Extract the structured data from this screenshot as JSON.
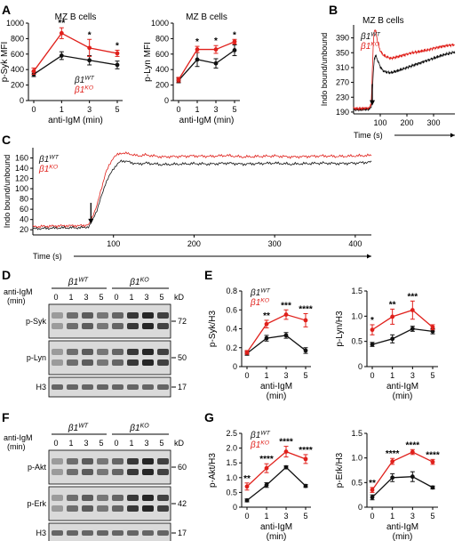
{
  "figure": {
    "panel_letters": [
      "A",
      "B",
      "C",
      "D",
      "E",
      "F",
      "G"
    ],
    "genotype_wt": "β1",
    "genotype_wt_sup": "WT",
    "genotype_ko": "β1",
    "genotype_ko_sup": "KO",
    "colors": {
      "wt": "#111111",
      "ko": "#e0201b"
    }
  },
  "blots": {
    "D": {
      "anti_label": "anti-IgM",
      "time_label": "(min)",
      "times": [
        "0",
        "1",
        "3",
        "5",
        "0",
        "1",
        "3",
        "5"
      ],
      "kd_label": "kD",
      "rows": [
        {
          "label": "p-Syk",
          "kd": "72"
        },
        {
          "label": "p-Lyn",
          "kd": "50"
        },
        {
          "label": "H3",
          "kd": "17"
        }
      ]
    },
    "F": {
      "anti_label": "anti-IgM",
      "time_label": "(min)",
      "times": [
        "0",
        "1",
        "3",
        "5",
        "0",
        "1",
        "3",
        "5"
      ],
      "kd_label": "kD",
      "rows": [
        {
          "label": "p-Akt",
          "kd": "60"
        },
        {
          "label": "p-Erk",
          "kd": "42"
        },
        {
          "label": "H3",
          "kd": "17"
        }
      ]
    }
  },
  "chart_data": [
    {
      "id": "A1",
      "panel": "A",
      "type": "line",
      "title": "MZ B cells",
      "xlabel": "anti-IgM (min)",
      "ylabel": "p-Syk MFI",
      "categories": [
        "0",
        "1",
        "3",
        "5"
      ],
      "ylim": [
        0,
        1000
      ],
      "yticks": [
        0,
        200,
        400,
        600,
        800,
        1000
      ],
      "series": [
        {
          "name": "β1WT",
          "values": [
            340,
            580,
            520,
            460
          ],
          "errors": [
            30,
            50,
            60,
            50
          ]
        },
        {
          "name": "β1KO",
          "values": [
            380,
            870,
            680,
            610
          ],
          "errors": [
            40,
            70,
            110,
            40
          ]
        }
      ],
      "stars": [
        "",
        "**",
        "*",
        "*"
      ]
    },
    {
      "id": "A2",
      "panel": "A",
      "type": "line",
      "title": "MZ B cells",
      "xlabel": "anti-IgM (min)",
      "ylabel": "p-Lyn MFI",
      "categories": [
        "0",
        "1",
        "3",
        "5"
      ],
      "ylim": [
        0,
        1000
      ],
      "yticks": [
        0,
        200,
        400,
        600,
        800,
        1000
      ],
      "series": [
        {
          "name": "β1WT",
          "values": [
            260,
            530,
            480,
            650
          ],
          "errors": [
            30,
            90,
            60,
            70
          ]
        },
        {
          "name": "β1KO",
          "values": [
            270,
            660,
            660,
            760
          ],
          "errors": [
            30,
            40,
            50,
            30
          ]
        }
      ],
      "stars": [
        "",
        "*",
        "*",
        "*"
      ]
    },
    {
      "id": "B",
      "panel": "B",
      "type": "line",
      "title": "MZ B cells",
      "xlabel": "Time (s)",
      "ylabel": "Indo bound/unbound",
      "xlim": [
        0,
        380
      ],
      "xticks": [
        100,
        200,
        300
      ],
      "ylim": [
        185,
        425
      ],
      "yticks": [
        190,
        230,
        270,
        310,
        350,
        390
      ],
      "arrow_x": 70,
      "series": [
        {
          "name": "β1WT",
          "x": [
            0,
            20,
            40,
            60,
            66,
            70,
            74,
            78,
            84,
            90,
            100,
            110,
            120,
            140,
            160,
            180,
            200,
            220,
            240,
            260,
            280,
            300,
            320,
            340,
            360,
            380
          ],
          "values": [
            197,
            196,
            197,
            198,
            205,
            240,
            300,
            335,
            342,
            330,
            312,
            302,
            298,
            296,
            300,
            305,
            310,
            315,
            320,
            325,
            330,
            335,
            340,
            345,
            348,
            352
          ]
        },
        {
          "name": "β1KO",
          "x": [
            0,
            20,
            40,
            60,
            66,
            70,
            74,
            78,
            84,
            90,
            100,
            110,
            120,
            140,
            160,
            180,
            200,
            220,
            240,
            260,
            280,
            300,
            320,
            340,
            360,
            380
          ],
          "values": [
            200,
            199,
            200,
            201,
            215,
            290,
            380,
            412,
            405,
            380,
            355,
            345,
            340,
            335,
            338,
            342,
            346,
            350,
            352,
            355,
            358,
            362,
            365,
            368,
            370,
            372
          ]
        }
      ]
    },
    {
      "id": "C",
      "panel": "C",
      "type": "line",
      "xlabel": "Time (s)",
      "ylabel": "Indo bound/unbound",
      "xlim": [
        0,
        420
      ],
      "xticks": [
        100,
        200,
        300,
        400
      ],
      "ylim": [
        10,
        180
      ],
      "yticks": [
        20,
        40,
        60,
        80,
        100,
        120,
        140,
        160
      ],
      "arrow_x": 72,
      "series": [
        {
          "name": "β1WT",
          "x": [
            0,
            20,
            40,
            60,
            70,
            80,
            90,
            100,
            110,
            120,
            130,
            140,
            160,
            180,
            200,
            220,
            240,
            260,
            280,
            300,
            320,
            340,
            360,
            380,
            400,
            420
          ],
          "values": [
            22,
            23,
            24,
            24,
            26,
            60,
            110,
            140,
            155,
            152,
            148,
            150,
            147,
            148,
            149,
            148,
            150,
            148,
            149,
            150,
            148,
            149,
            150,
            149,
            150,
            152
          ]
        },
        {
          "name": "β1KO",
          "x": [
            0,
            20,
            40,
            60,
            70,
            80,
            90,
            100,
            110,
            120,
            130,
            140,
            160,
            180,
            200,
            220,
            240,
            260,
            280,
            300,
            320,
            340,
            360,
            380,
            400,
            420
          ],
          "values": [
            26,
            27,
            28,
            28,
            30,
            70,
            130,
            162,
            170,
            168,
            164,
            166,
            162,
            163,
            164,
            163,
            165,
            162,
            163,
            164,
            162,
            163,
            164,
            163,
            164,
            165
          ]
        }
      ]
    },
    {
      "id": "E1",
      "panel": "E",
      "type": "line",
      "xlabel": "anti-IgM",
      "xlabel2": "(min)",
      "ylabel": "p-Syk/H3",
      "categories": [
        "0",
        "1",
        "3",
        "5"
      ],
      "ylim": [
        0,
        0.8
      ],
      "yticks": [
        0,
        0.2,
        0.4,
        0.6,
        0.8
      ],
      "ytick_labels": [
        "0",
        "0.2",
        "0.4",
        "0.6",
        "0.8"
      ],
      "series": [
        {
          "name": "β1WT",
          "values": [
            0.14,
            0.3,
            0.33,
            0.17
          ],
          "errors": [
            0.02,
            0.03,
            0.03,
            0.03
          ]
        },
        {
          "name": "β1KO",
          "values": [
            0.15,
            0.45,
            0.55,
            0.49
          ],
          "errors": [
            0.02,
            0.04,
            0.05,
            0.07
          ]
        }
      ],
      "stars": [
        "",
        "**",
        "***",
        "****"
      ]
    },
    {
      "id": "E2",
      "panel": "E",
      "type": "line",
      "xlabel": "anti-IgM",
      "xlabel2": "(min)",
      "ylabel": "p-Lyn/H3",
      "categories": [
        "0",
        "1",
        "3",
        "5"
      ],
      "ylim": [
        0,
        1.5
      ],
      "yticks": [
        0,
        0.5,
        1.0,
        1.5
      ],
      "ytick_labels": [
        "0",
        "0.5",
        "1.0",
        "1.5"
      ],
      "series": [
        {
          "name": "β1WT",
          "values": [
            0.44,
            0.55,
            0.75,
            0.7
          ],
          "errors": [
            0.04,
            0.08,
            0.05,
            0.05
          ]
        },
        {
          "name": "β1KO",
          "values": [
            0.73,
            0.99,
            1.12,
            0.78
          ],
          "errors": [
            0.1,
            0.15,
            0.18,
            0.05
          ]
        }
      ],
      "stars": [
        "*",
        "**",
        "***",
        ""
      ]
    },
    {
      "id": "G1",
      "panel": "G",
      "type": "line",
      "xlabel": "anti-IgM",
      "xlabel2": "(min)",
      "ylabel": "p-Akt/H3",
      "categories": [
        "0",
        "1",
        "3",
        "5"
      ],
      "ylim": [
        0,
        2.5
      ],
      "yticks": [
        0,
        0.5,
        1.0,
        1.5,
        2.0,
        2.5
      ],
      "ytick_labels": [
        "0",
        "0.5",
        "1.0",
        "1.5",
        "2.0",
        "2.5"
      ],
      "series": [
        {
          "name": "β1WT",
          "values": [
            0.23,
            0.75,
            1.35,
            0.72
          ],
          "errors": [
            0.05,
            0.08,
            0.05,
            0.05
          ]
        },
        {
          "name": "β1KO",
          "values": [
            0.7,
            1.32,
            1.88,
            1.63
          ],
          "errors": [
            0.12,
            0.15,
            0.18,
            0.15
          ]
        }
      ],
      "stars": [
        "**",
        "****",
        "****",
        "****"
      ]
    },
    {
      "id": "G2",
      "panel": "G",
      "type": "line",
      "xlabel": "anti-IgM",
      "xlabel2": "(min)",
      "ylabel": "p-Erk/H3",
      "categories": [
        "0",
        "1",
        "3",
        "5"
      ],
      "ylim": [
        0,
        1.5
      ],
      "yticks": [
        0,
        0.5,
        1.0,
        1.5
      ],
      "ytick_labels": [
        "0",
        "0.5",
        "1.0",
        "1.5"
      ],
      "series": [
        {
          "name": "β1WT",
          "values": [
            0.2,
            0.6,
            0.62,
            0.4
          ],
          "errors": [
            0.05,
            0.08,
            0.1,
            0.03
          ]
        },
        {
          "name": "β1KO",
          "values": [
            0.35,
            0.93,
            1.12,
            0.92
          ],
          "errors": [
            0.05,
            0.06,
            0.05,
            0.05
          ]
        }
      ],
      "stars": [
        "**",
        "****",
        "****",
        "****"
      ]
    }
  ]
}
